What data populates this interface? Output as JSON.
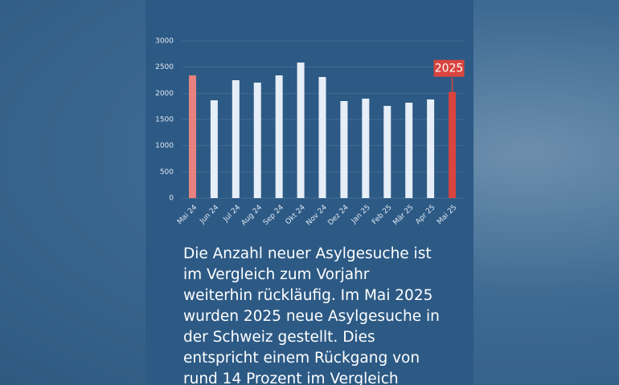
{
  "chart_data": {
    "type": "bar",
    "categories": [
      "Mai 24",
      "Jun 24",
      "Jul 24",
      "Aug 24",
      "Sep 24",
      "Okt 24",
      "Nov 24",
      "Dez 24",
      "Jan 25",
      "Feb 25",
      "Mär 25",
      "Apr 25",
      "Mai 25"
    ],
    "values": [
      2342,
      1867,
      2250,
      2204,
      2342,
      2587,
      2311,
      1852,
      1898,
      1760,
      1821,
      1883,
      2025
    ],
    "colors": [
      "#e8827f",
      "#e6eef8",
      "#e6eef8",
      "#e6eef8",
      "#e6eef8",
      "#e6eef8",
      "#e6eef8",
      "#e6eef8",
      "#e6eef8",
      "#e6eef8",
      "#e6eef8",
      "#e6eef8",
      "#d9443f"
    ],
    "ylim": [
      0,
      3000
    ],
    "yticks": [
      0,
      500,
      1000,
      1500,
      2000,
      2500,
      3000
    ],
    "grid": true
  },
  "text": [
    "Die Anzahl neuer Asylgesuche ist",
    "im Vergleich zum Vorjahr",
    "weiterhin rückläufig. Im Mai 2025",
    "wurden 2025 neue Asylgesuche in",
    "der Schweiz gestellt. Dies",
    "entspricht einem Rückgang von",
    "rund 14 Prozent im Vergleich"
  ]
}
